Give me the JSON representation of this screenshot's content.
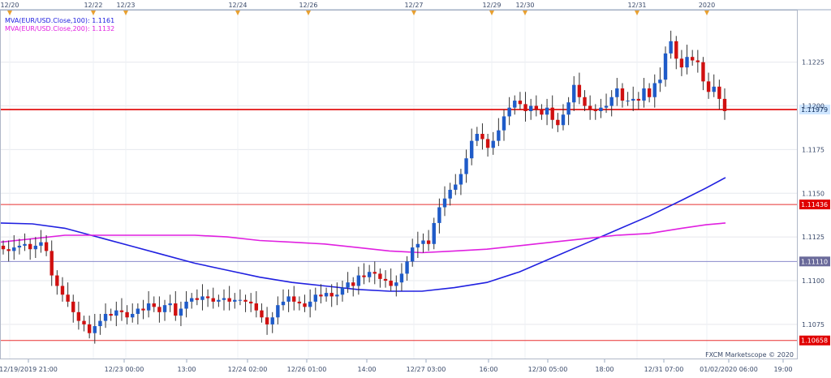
{
  "chart_data": {
    "type": "candlestick",
    "instrument": "EUR/USD",
    "legend": [
      {
        "label": "MVA(EUR/USD.Close,100)",
        "value": "1.1161",
        "color": "#2020e0"
      },
      {
        "label": "MVA(EUR/USD.Close,200)",
        "value": "1.1132",
        "color": "#e020e0"
      }
    ],
    "y_axis": {
      "min": 1.1055,
      "max": 1.1255,
      "ticks": [
        "1.1225",
        "1.1200",
        "1.1175",
        "1.1150",
        "1.1125",
        "1.1100",
        "1.1075"
      ],
      "tick_values": [
        1.1225,
        1.12,
        1.1175,
        1.115,
        1.1125,
        1.11,
        1.1075
      ]
    },
    "top_date_markers": [
      "12/20",
      "12/22",
      "12/23",
      "12/24",
      "12/26",
      "12/27",
      "12/29",
      "12/30",
      "12/31",
      "2020"
    ],
    "x_axis_labels": [
      "12/19/2019 21:00",
      "12/23 00:00",
      "13:00",
      "12/24 02:00",
      "12/26 01:00",
      "14:00",
      "12/27 03:00",
      "16:00",
      "12/30 05:00",
      "18:00",
      "12/31 07:00",
      "01/02/2020 06:00",
      "19:00"
    ],
    "horizontal_lines": [
      {
        "value": 1.11979,
        "label": "1.11979",
        "color": "#e00000",
        "label_bg": "#cfe6ff"
      },
      {
        "value": 1.11436,
        "label": "1.11436",
        "color": "#e83030",
        "label_bg": "#e00000"
      },
      {
        "value": 1.1111,
        "label": "1.11110",
        "color": "#8888cc",
        "label_bg": "#6a6a9a"
      },
      {
        "value": 1.10658,
        "label": "1.10658",
        "color": "#e83030",
        "label_bg": "#e00000"
      }
    ],
    "watermark": "FXCM Marketscope © 2020",
    "candle_close_path": [
      1.1118,
      1.1117,
      1.1119,
      1.112,
      1.1121,
      1.1118,
      1.112,
      1.1122,
      1.1117,
      1.1103,
      1.1097,
      1.1092,
      1.1088,
      1.1082,
      1.1077,
      1.1075,
      1.107,
      1.1074,
      1.1077,
      1.1081,
      1.108,
      1.1083,
      1.1082,
      1.1079,
      1.1081,
      1.1084,
      1.1083,
      1.1087,
      1.1085,
      1.1082,
      1.1086,
      1.1087,
      1.108,
      1.1084,
      1.1088,
      1.109,
      1.1089,
      1.1091,
      1.109,
      1.1088,
      1.1089,
      1.109,
      1.1088,
      1.1089,
      1.1089,
      1.1088,
      1.1087,
      1.1083,
      1.1079,
      1.1075,
      1.1079,
      1.1086,
      1.1088,
      1.1091,
      1.1088,
      1.1087,
      1.1085,
      1.1088,
      1.1092,
      1.1091,
      1.1093,
      1.1091,
      1.1092,
      1.1096,
      1.1099,
      1.1097,
      1.1103,
      1.1102,
      1.1105,
      1.1104,
      1.1101,
      1.11,
      1.1097,
      1.1099,
      1.1104,
      1.1111,
      1.1119,
      1.1121,
      1.1123,
      1.1121,
      1.1133,
      1.1142,
      1.1147,
      1.1152,
      1.1155,
      1.1161,
      1.117,
      1.118,
      1.1184,
      1.1181,
      1.1176,
      1.118,
      1.1186,
      1.1194,
      1.1199,
      1.1203,
      1.1201,
      1.1197,
      1.12,
      1.1198,
      1.1195,
      1.1199,
      1.1192,
      1.1189,
      1.1195,
      1.1202,
      1.1212,
      1.1205,
      1.12,
      1.1198,
      1.1197,
      1.1199,
      1.12,
      1.1205,
      1.121,
      1.1203,
      1.1203,
      1.1204,
      1.1203,
      1.121,
      1.1205,
      1.1213,
      1.1215,
      1.123,
      1.1237,
      1.1227,
      1.1222,
      1.1228,
      1.1226,
      1.1225,
      1.1214,
      1.1208,
      1.1211,
      1.1204,
      1.1197
    ]
  }
}
